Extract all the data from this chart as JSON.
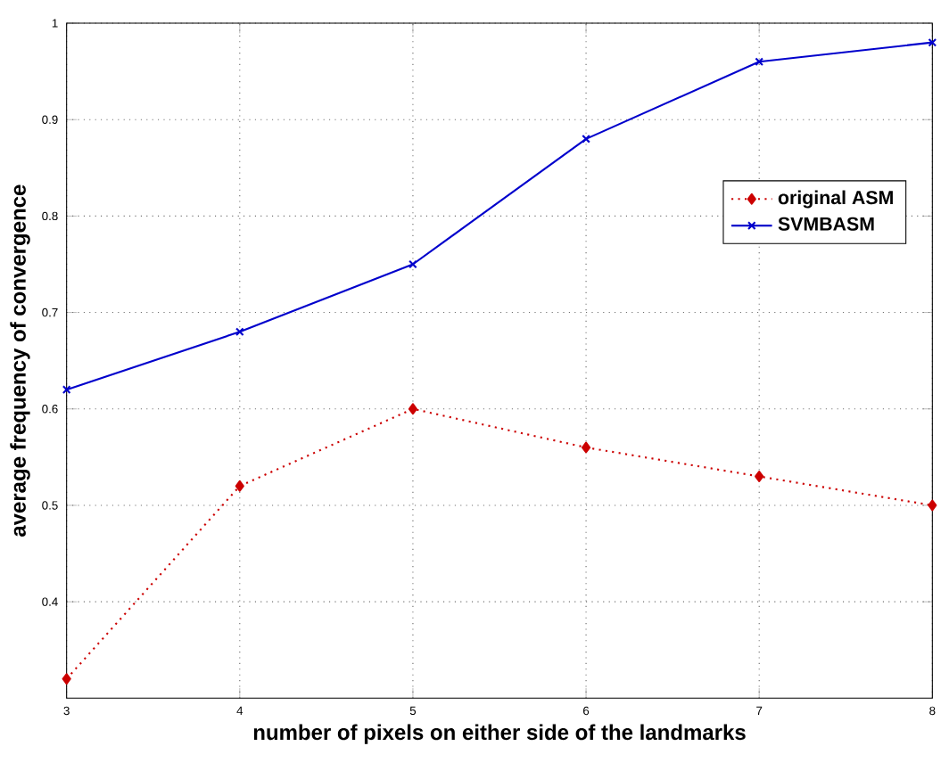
{
  "chart_data": {
    "type": "line",
    "xlabel": "number of pixels on either side of the landmarks",
    "ylabel": "average frequency of convergence",
    "x": [
      3,
      4,
      5,
      6,
      7,
      8
    ],
    "series": [
      {
        "name": "original ASM",
        "color": "#cc0000",
        "values": [
          0.32,
          0.52,
          0.6,
          0.56,
          0.53,
          0.5
        ],
        "line_style": "dotted",
        "marker": "diamond"
      },
      {
        "name": "SVMBASM",
        "color": "#0000cc",
        "values": [
          0.62,
          0.68,
          0.75,
          0.88,
          0.96,
          0.98
        ],
        "line_style": "solid",
        "marker": "cross"
      }
    ],
    "xlim": [
      3,
      8
    ],
    "ylim": [
      0.3,
      1
    ],
    "xticks": [
      3,
      4,
      5,
      6,
      7,
      8
    ],
    "yticks": [
      0.4,
      0.5,
      0.6,
      0.7,
      0.8,
      0.9,
      1
    ],
    "grid": true,
    "legend": "right"
  }
}
